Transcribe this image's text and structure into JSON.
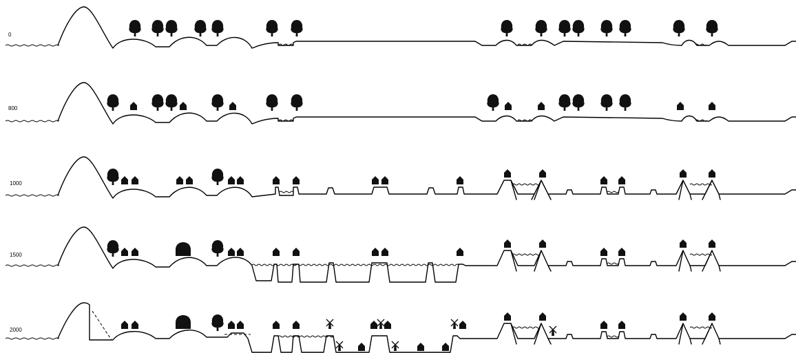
{
  "diagram": {
    "panels": [
      {
        "year": "0"
      },
      {
        "year": "800"
      },
      {
        "year": "1000"
      },
      {
        "year": "1500"
      },
      {
        "year": "2000"
      }
    ]
  },
  "legend_icons": [
    "tree-icon",
    "house-icon",
    "windmill-icon",
    "church-icon"
  ]
}
